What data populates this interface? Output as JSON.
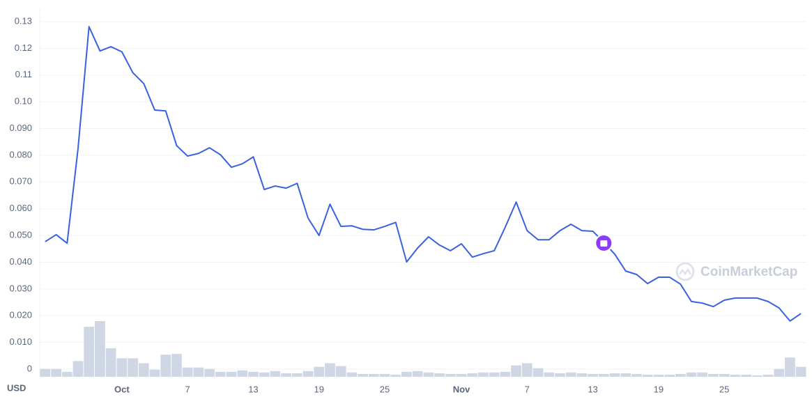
{
  "chart_data": {
    "type": "line",
    "y_label": "USD",
    "watermark": "CoinMarketCap",
    "categories": [
      null,
      null,
      null,
      null,
      null,
      null,
      null,
      "Oct",
      null,
      null,
      null,
      null,
      null,
      "7",
      null,
      null,
      null,
      null,
      null,
      "13",
      null,
      null,
      null,
      null,
      null,
      "19",
      null,
      null,
      null,
      null,
      null,
      "25",
      null,
      null,
      null,
      null,
      null,
      null,
      "Nov",
      null,
      null,
      null,
      null,
      null,
      "7",
      null,
      null,
      null,
      null,
      null,
      "13",
      null,
      null,
      null,
      null,
      null,
      "19",
      null,
      null,
      null,
      null,
      null,
      "25",
      null,
      null,
      null,
      null,
      null,
      null,
      null
    ],
    "series": [
      {
        "color": "#3861e0",
        "values": [
          0.0477,
          0.0503,
          0.0471,
          0.0826,
          0.1281,
          0.119,
          0.1206,
          0.1187,
          0.1109,
          0.1068,
          0.0969,
          0.0966,
          0.0836,
          0.0797,
          0.0807,
          0.0828,
          0.0802,
          0.0755,
          0.0768,
          0.0794,
          0.0672,
          0.0685,
          0.0677,
          0.0695,
          0.0565,
          0.05,
          0.0617,
          0.0534,
          0.0536,
          0.0523,
          0.0521,
          0.0534,
          0.0549,
          0.0401,
          0.0453,
          0.0495,
          0.0464,
          0.0443,
          0.0469,
          0.0419,
          0.0432,
          0.0443,
          0.0531,
          0.0625,
          0.0518,
          0.0484,
          0.0484,
          0.0518,
          0.0542,
          0.0518,
          0.0516,
          0.0474,
          0.043,
          0.0367,
          0.0354,
          0.032,
          0.0344,
          0.0344,
          0.0318,
          0.0253,
          0.0247,
          0.0234,
          0.0258,
          0.0266,
          0.0266,
          0.0266,
          0.0253,
          0.0229,
          0.018,
          0.0208
        ]
      }
    ],
    "volume": {
      "color": "#cfd6e4",
      "values": [
        11,
        11,
        7,
        22,
        70,
        78,
        40,
        26,
        26,
        19,
        10,
        31,
        32,
        13,
        13,
        11,
        7,
        7,
        9,
        7,
        6,
        8,
        5,
        5,
        8,
        14,
        19,
        15,
        6,
        4,
        4,
        4,
        3,
        7,
        8,
        6,
        5,
        4,
        4,
        5,
        6,
        6,
        7,
        16,
        19,
        12,
        6,
        5,
        6,
        5,
        4,
        4,
        5,
        5,
        4,
        3,
        3,
        3,
        4,
        6,
        6,
        4,
        4,
        3,
        3,
        2,
        3,
        11,
        27,
        14
      ]
    },
    "ylim": [
      0,
      0.13
    ],
    "yticks": [
      0,
      {
        "value": 0.01,
        "label": "0.010"
      },
      {
        "value": 0.02,
        "label": "0.020"
      },
      {
        "value": 0.03,
        "label": "0.030"
      },
      {
        "value": 0.04,
        "label": "0.040"
      },
      {
        "value": 0.05,
        "label": "0.050"
      },
      {
        "value": 0.06,
        "label": "0.060"
      },
      {
        "value": 0.07,
        "label": "0.070"
      },
      {
        "value": 0.08,
        "label": "0.080"
      },
      {
        "value": 0.09,
        "label": "0.090"
      },
      {
        "value": 0.1,
        "label": "0.10"
      },
      0.11,
      0.12,
      0.13
    ],
    "grid": true
  }
}
